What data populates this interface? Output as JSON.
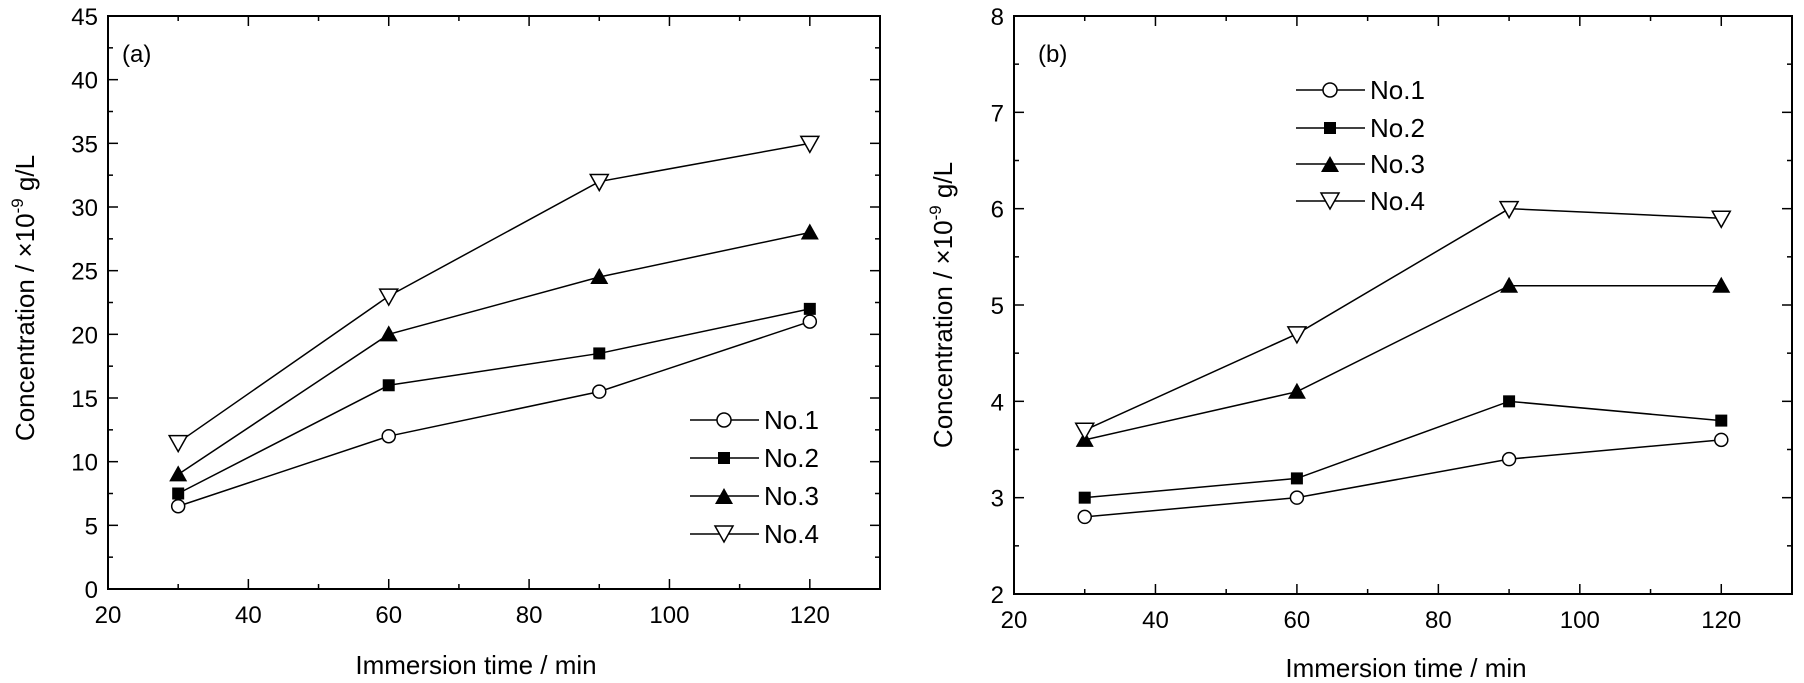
{
  "chart_data": [
    {
      "type": "line",
      "panel_label": "(a)",
      "xlabel": "Immersion time / min",
      "ylabel": "Concentration / ×10-9 g/L",
      "ylabel_parts": {
        "prefix": "Concentration / ×10",
        "exponent": "-9",
        "suffix": " g/L"
      },
      "xlim": [
        20,
        130
      ],
      "ylim": [
        0,
        45
      ],
      "xticks": [
        20,
        40,
        60,
        80,
        100,
        120
      ],
      "yticks": [
        0,
        5,
        10,
        15,
        20,
        25,
        30,
        35,
        40,
        45
      ],
      "x": [
        30,
        60,
        90,
        120
      ],
      "legend_position": "bottom-right",
      "series": [
        {
          "name": "No.1",
          "marker": "open-circle",
          "values": [
            6.5,
            12,
            15.5,
            21
          ]
        },
        {
          "name": "No.2",
          "marker": "filled-square",
          "values": [
            7.5,
            16,
            18.5,
            22
          ]
        },
        {
          "name": "No.3",
          "marker": "filled-triangle-up",
          "values": [
            9,
            20,
            24.5,
            28
          ]
        },
        {
          "name": "No.4",
          "marker": "open-triangle-down",
          "values": [
            11.5,
            23,
            32,
            35
          ]
        }
      ]
    },
    {
      "type": "line",
      "panel_label": "(b)",
      "xlabel": "Immersion time / min",
      "ylabel": "Concentration / ×10-9 g/L",
      "ylabel_parts": {
        "prefix": "Concentration / ×10",
        "exponent": "-9",
        "suffix": " g/L"
      },
      "xlim": [
        20,
        130
      ],
      "ylim": [
        2,
        8
      ],
      "xticks": [
        20,
        40,
        60,
        80,
        100,
        120
      ],
      "yticks": [
        2,
        3,
        4,
        5,
        6,
        7,
        8
      ],
      "x": [
        30,
        60,
        90,
        120
      ],
      "legend_position": "top-left",
      "series": [
        {
          "name": "No.1",
          "marker": "open-circle",
          "values": [
            2.8,
            3.0,
            3.4,
            3.6
          ]
        },
        {
          "name": "No.2",
          "marker": "filled-square",
          "values": [
            3.0,
            3.2,
            4.0,
            3.8
          ]
        },
        {
          "name": "No.3",
          "marker": "filled-triangle-up",
          "values": [
            3.6,
            4.1,
            5.2,
            5.2
          ]
        },
        {
          "name": "No.4",
          "marker": "open-triangle-down",
          "values": [
            3.7,
            4.7,
            6.0,
            5.9
          ]
        }
      ]
    }
  ],
  "colors": {
    "line": "#000000",
    "marker_fill_open": "#ffffff",
    "background": "#ffffff"
  }
}
